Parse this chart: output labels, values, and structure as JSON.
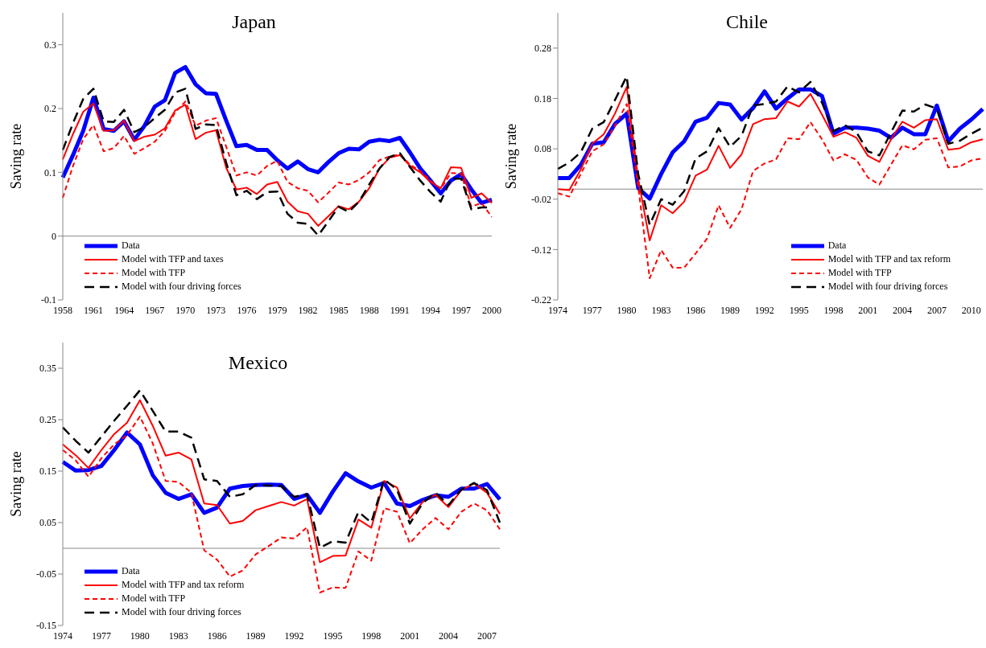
{
  "chart_data": [
    {
      "type": "line",
      "title": "Japan",
      "ylabel": "Saving rate",
      "categories": [
        "1958",
        null,
        null,
        "1961",
        null,
        null,
        "1964",
        null,
        null,
        "1967",
        null,
        null,
        "1970",
        null,
        null,
        "1973",
        null,
        null,
        "1976",
        null,
        null,
        "1979",
        null,
        null,
        "1982",
        null,
        null,
        "1985",
        null,
        null,
        "1988",
        null,
        null,
        "1991",
        null,
        null,
        "1994",
        null,
        null,
        "1997",
        null,
        null,
        "2000"
      ],
      "series": [
        {
          "name": "Data",
          "color": "#0000ff",
          "line_style": "solid",
          "values": [
            0.092,
            0.127,
            0.165,
            0.217,
            0.168,
            0.165,
            0.18,
            0.151,
            0.173,
            0.203,
            0.213,
            0.256,
            0.265,
            0.238,
            0.224,
            0.223,
            0.181,
            0.141,
            0.143,
            0.135,
            0.135,
            0.119,
            0.106,
            0.117,
            0.105,
            0.1,
            0.116,
            0.13,
            0.137,
            0.136,
            0.148,
            0.151,
            0.149,
            0.154,
            0.131,
            0.106,
            0.087,
            0.067,
            0.087,
            0.097,
            0.073,
            0.052,
            0.057
          ]
        },
        {
          "name": "Model with TFP and taxes",
          "color": "#ff0000",
          "line_style": "solid",
          "values": [
            0.12,
            0.16,
            0.195,
            0.208,
            0.165,
            0.166,
            0.181,
            0.149,
            0.156,
            0.159,
            0.169,
            0.197,
            0.206,
            0.152,
            0.162,
            0.166,
            0.107,
            0.073,
            0.076,
            0.066,
            0.081,
            0.085,
            0.054,
            0.039,
            0.035,
            0.016,
            0.031,
            0.047,
            0.042,
            0.054,
            0.075,
            0.106,
            0.123,
            0.127,
            0.11,
            0.1,
            0.085,
            0.075,
            0.108,
            0.107,
            0.06,
            0.067,
            0.052
          ]
        },
        {
          "name": "Model with TFP",
          "color": "#ff0000",
          "line_style": "dashed",
          "values": [
            0.06,
            0.11,
            0.152,
            0.174,
            0.133,
            0.138,
            0.157,
            0.129,
            0.138,
            0.148,
            0.165,
            0.194,
            0.211,
            0.173,
            0.181,
            0.185,
            0.14,
            0.095,
            0.1,
            0.095,
            0.11,
            0.118,
            0.085,
            0.075,
            0.071,
            0.053,
            0.068,
            0.084,
            0.081,
            0.088,
            0.1,
            0.119,
            0.125,
            0.128,
            0.112,
            0.102,
            0.087,
            0.074,
            0.099,
            0.098,
            0.046,
            0.052,
            0.03
          ]
        },
        {
          "name": "Model with four driving forces",
          "color": "#000000",
          "line_style": "dashed",
          "values": [
            0.135,
            0.177,
            0.215,
            0.231,
            0.18,
            0.179,
            0.198,
            0.163,
            0.171,
            0.185,
            0.198,
            0.225,
            0.231,
            0.168,
            0.175,
            0.174,
            0.115,
            0.064,
            0.071,
            0.058,
            0.069,
            0.07,
            0.035,
            0.021,
            0.019,
            0.001,
            0.023,
            0.046,
            0.038,
            0.054,
            0.081,
            0.106,
            0.124,
            0.13,
            0.108,
            0.087,
            0.069,
            0.054,
            0.09,
            0.09,
            0.042,
            0.045,
            0.045
          ]
        }
      ],
      "ylim": [
        -0.1,
        0.35
      ],
      "yticks": [
        -0.1,
        0,
        0.1,
        0.2,
        0.3
      ],
      "ref_lines": [
        {
          "axis": "y",
          "value": 0,
          "color": "#888888"
        }
      ],
      "legend": "bottom left"
    },
    {
      "type": "line",
      "title": "Chile",
      "ylabel": "Saving rate",
      "categories": [
        "1974",
        null,
        null,
        "1977",
        null,
        null,
        "1980",
        null,
        null,
        "1983",
        null,
        null,
        "1986",
        null,
        null,
        "1989",
        null,
        null,
        "1992",
        null,
        null,
        "1995",
        null,
        null,
        "1998",
        null,
        null,
        "2001",
        null,
        null,
        "2004",
        null,
        null,
        "2007",
        null,
        null,
        "2010",
        null
      ],
      "series": [
        {
          "name": "Data",
          "color": "#0000ff",
          "line_style": "solid",
          "values": [
            0.022,
            0.022,
            0.048,
            0.09,
            0.093,
            0.13,
            0.15,
            0.002,
            -0.019,
            0.03,
            0.073,
            0.095,
            0.134,
            0.142,
            0.171,
            0.168,
            0.138,
            0.161,
            0.194,
            0.16,
            0.18,
            0.198,
            0.198,
            0.185,
            0.11,
            0.122,
            0.122,
            0.12,
            0.116,
            0.102,
            0.122,
            0.109,
            0.109,
            0.166,
            0.095,
            0.12,
            0.138,
            0.159
          ]
        },
        {
          "name": "Model with TFP and tax reform",
          "color": "#ff0000",
          "line_style": "solid",
          "values": [
            0.0,
            -0.002,
            0.039,
            0.09,
            0.109,
            0.151,
            0.203,
            0.02,
            -0.102,
            -0.032,
            -0.048,
            -0.025,
            0.027,
            0.039,
            0.086,
            0.042,
            0.069,
            0.129,
            0.139,
            0.141,
            0.174,
            0.164,
            0.189,
            0.148,
            0.104,
            0.113,
            0.102,
            0.066,
            0.054,
            0.098,
            0.134,
            0.122,
            0.137,
            0.139,
            0.078,
            0.081,
            0.093,
            0.099
          ]
        },
        {
          "name": "Model with TFP",
          "color": "#ff0000",
          "line_style": "dashed",
          "values": [
            -0.008,
            -0.015,
            0.03,
            0.075,
            0.089,
            0.127,
            0.169,
            0.005,
            -0.177,
            -0.121,
            -0.156,
            -0.156,
            -0.128,
            -0.098,
            -0.032,
            -0.077,
            -0.04,
            0.036,
            0.051,
            0.059,
            0.101,
            0.099,
            0.133,
            0.099,
            0.057,
            0.069,
            0.058,
            0.023,
            0.009,
            0.048,
            0.087,
            0.079,
            0.098,
            0.101,
            0.043,
            0.045,
            0.057,
            0.061
          ]
        },
        {
          "name": "Model with four driving forces",
          "color": "#000000",
          "line_style": "dashed",
          "values": [
            0.04,
            0.053,
            0.073,
            0.12,
            0.133,
            0.178,
            0.224,
            0.03,
            -0.071,
            -0.02,
            -0.031,
            -0.004,
            0.061,
            0.075,
            0.121,
            0.084,
            0.106,
            0.166,
            0.169,
            0.174,
            0.204,
            0.192,
            0.213,
            0.172,
            0.115,
            0.127,
            0.113,
            0.075,
            0.067,
            0.112,
            0.156,
            0.154,
            0.168,
            0.16,
            0.09,
            0.096,
            0.11,
            0.122
          ]
        }
      ],
      "ylim": [
        -0.22,
        0.35
      ],
      "yticks": [
        -0.22,
        -0.12,
        -0.02,
        0.08,
        0.18,
        0.28
      ],
      "ref_lines": [
        {
          "axis": "y",
          "value": 0,
          "color": "#888888"
        }
      ],
      "legend": "bottom right"
    },
    {
      "type": "line",
      "title": "Mexico",
      "ylabel": "Saving rate",
      "categories": [
        "1974",
        null,
        null,
        "1977",
        null,
        null,
        "1980",
        null,
        null,
        "1983",
        null,
        null,
        "1986",
        null,
        null,
        "1989",
        null,
        null,
        "1992",
        null,
        null,
        "1995",
        null,
        null,
        "1998",
        null,
        null,
        "2001",
        null,
        null,
        "2004",
        null,
        null,
        "2007",
        null
      ],
      "series": [
        {
          "name": "Data",
          "color": "#0000ff",
          "line_style": "solid",
          "values": [
            0.168,
            0.151,
            0.152,
            0.16,
            0.191,
            0.225,
            0.202,
            0.142,
            0.108,
            0.096,
            0.105,
            0.069,
            0.079,
            0.116,
            0.121,
            0.123,
            0.124,
            0.123,
            0.096,
            0.104,
            0.069,
            0.11,
            0.146,
            0.13,
            0.118,
            0.127,
            0.087,
            0.082,
            0.094,
            0.103,
            0.1,
            0.116,
            0.116,
            0.125,
            0.095
          ]
        },
        {
          "name": "Model with TFP and tax reform",
          "color": "#ff0000",
          "line_style": "solid",
          "values": [
            0.202,
            0.181,
            0.156,
            0.191,
            0.222,
            0.244,
            0.288,
            0.238,
            0.18,
            0.186,
            0.173,
            0.087,
            0.084,
            0.048,
            0.053,
            0.074,
            0.082,
            0.09,
            0.083,
            0.096,
            -0.027,
            -0.015,
            -0.014,
            0.056,
            0.04,
            0.131,
            0.118,
            0.058,
            0.09,
            0.104,
            0.08,
            0.113,
            0.126,
            0.108,
            0.067
          ]
        },
        {
          "name": "Model with TFP",
          "color": "#ff0000",
          "line_style": "dashed",
          "values": [
            0.191,
            0.171,
            0.139,
            0.175,
            0.202,
            0.22,
            0.256,
            0.204,
            0.131,
            0.129,
            0.108,
            -0.004,
            -0.022,
            -0.055,
            -0.043,
            -0.012,
            0.004,
            0.021,
            0.019,
            0.041,
            -0.086,
            -0.076,
            -0.077,
            -0.006,
            -0.024,
            0.078,
            0.071,
            0.01,
            0.037,
            0.059,
            0.037,
            0.071,
            0.087,
            0.074,
            0.037
          ]
        },
        {
          "name": "Model with four driving forces",
          "color": "#000000",
          "line_style": "dashed",
          "values": [
            0.235,
            0.209,
            0.186,
            0.217,
            0.248,
            0.277,
            0.307,
            0.267,
            0.227,
            0.227,
            0.215,
            0.134,
            0.131,
            0.1,
            0.105,
            0.123,
            0.122,
            0.121,
            0.1,
            0.105,
            0.001,
            0.014,
            0.011,
            0.071,
            0.05,
            0.134,
            0.114,
            0.048,
            0.088,
            0.108,
            0.084,
            0.114,
            0.127,
            0.113,
            0.05
          ]
        }
      ],
      "ylim": [
        -0.15,
        0.4
      ],
      "yticks": [
        -0.15,
        -0.05,
        0.05,
        0.15,
        0.25,
        0.35
      ],
      "ref_lines": [
        {
          "axis": "y",
          "value": 0,
          "color": "#888888"
        }
      ],
      "legend": "bottom left"
    }
  ]
}
